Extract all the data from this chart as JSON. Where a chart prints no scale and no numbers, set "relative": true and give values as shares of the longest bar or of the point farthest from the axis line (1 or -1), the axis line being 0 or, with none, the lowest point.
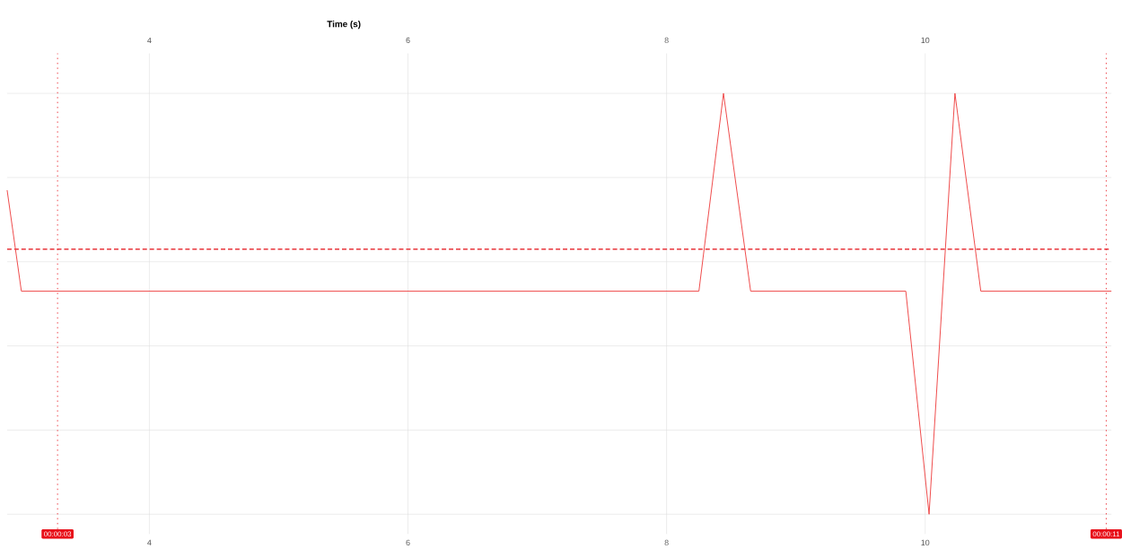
{
  "chart_data": {
    "type": "line",
    "relative": true,
    "x": [
      2.9,
      3.01,
      8.25,
      8.44,
      8.65,
      9.85,
      10.03,
      10.23,
      10.43,
      11.44
    ],
    "values": [
      0.77,
      0.53,
      0.53,
      1,
      0.53,
      0.53,
      0,
      1,
      0.53,
      0.53
    ],
    "color": "#ef4b4b",
    "line_style": "solid",
    "xlim": [
      2.9,
      11.44
    ],
    "xticks": [
      4,
      6,
      8,
      10
    ],
    "x2lim": [
      2.9,
      11.44
    ],
    "x2ticks": [
      4,
      6,
      8,
      10
    ],
    "x2label": "Time (s)",
    "tick_labels": "x",
    "grid": true,
    "ref_lines": [
      {
        "axis": "y",
        "value": 0.63,
        "color": "#e8353b",
        "line_style": "dashed"
      },
      {
        "axis": "x",
        "value": 3.29,
        "label": "00:00:03",
        "color": "#e8101a",
        "line_style": "dotted"
      },
      {
        "axis": "x",
        "value": 11.4,
        "label": "00:00:11",
        "color": "#e8101a",
        "line_style": "dotted"
      }
    ]
  }
}
